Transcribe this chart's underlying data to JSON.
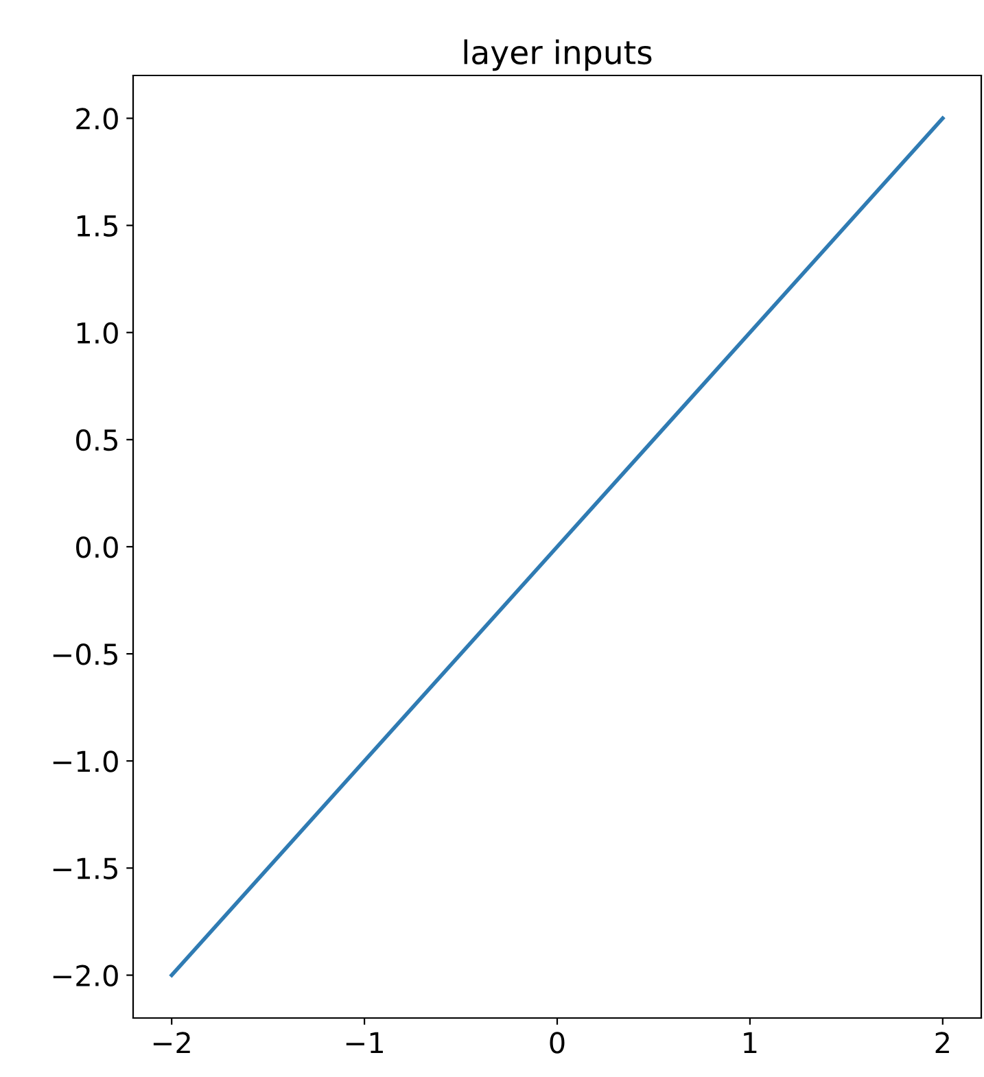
{
  "chart_data": {
    "type": "line",
    "title": "layer inputs",
    "x": [
      -2,
      2
    ],
    "series": [
      {
        "color": "#2f7bb3",
        "values": [
          -2,
          2
        ]
      }
    ],
    "xlim": [
      -2.2,
      2.2
    ],
    "ylim": [
      -2.2,
      2.2
    ],
    "xticks": [
      {
        "value": -2,
        "label": "−2"
      },
      {
        "value": -1,
        "label": "−1"
      },
      0,
      1,
      2
    ],
    "yticks": [
      {
        "value": -2,
        "label": "−2.0"
      },
      {
        "value": -1.5,
        "label": "−1.5"
      },
      {
        "value": -1,
        "label": "−1.0"
      },
      {
        "value": -0.5,
        "label": "−0.5"
      },
      {
        "value": 0,
        "label": "0.0"
      },
      {
        "value": 0.5,
        "label": "0.5"
      },
      {
        "value": 1,
        "label": "1.0"
      },
      {
        "value": 1.5,
        "label": "1.5"
      },
      {
        "value": 2,
        "label": "2.0"
      }
    ],
    "grid": false,
    "legend": false
  }
}
